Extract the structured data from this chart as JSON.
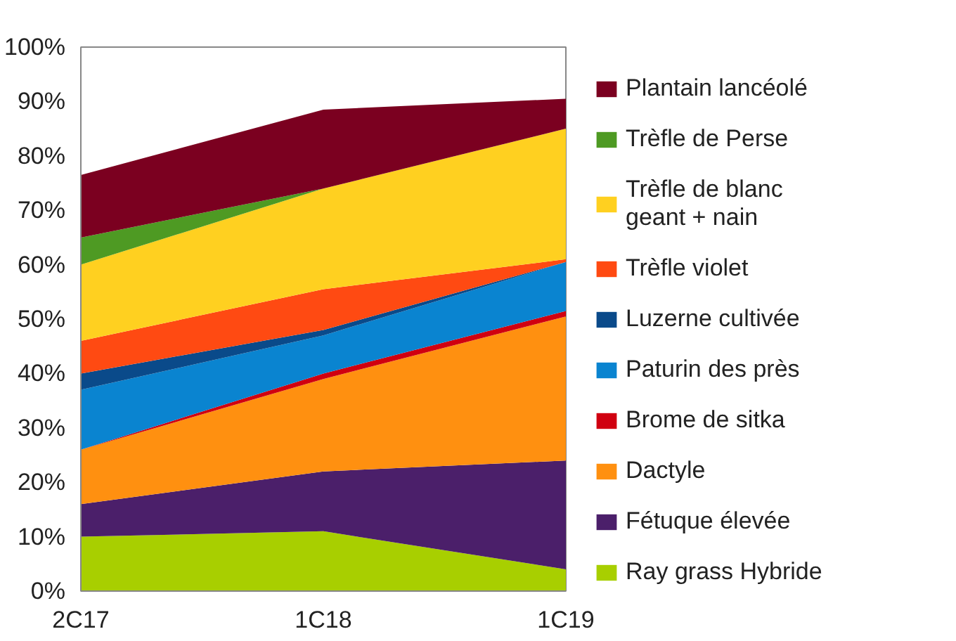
{
  "chart_data": {
    "type": "area",
    "stacked": true,
    "categories": [
      "2C17",
      "1C18",
      "1C19"
    ],
    "ylim": [
      0,
      100
    ],
    "yticks": [
      {
        "value": 0,
        "label": "0%"
      },
      {
        "value": 10,
        "label": "10%"
      },
      {
        "value": 20,
        "label": "20%"
      },
      {
        "value": 30,
        "label": "30%"
      },
      {
        "value": 40,
        "label": "40%"
      },
      {
        "value": 50,
        "label": "50%"
      },
      {
        "value": 60,
        "label": "60%"
      },
      {
        "value": 70,
        "label": "70%"
      },
      {
        "value": 80,
        "label": "80%"
      },
      {
        "value": 90,
        "label": "90%"
      },
      {
        "value": 100,
        "label": "100%"
      }
    ],
    "grid": false,
    "legend": "right",
    "series": [
      {
        "name": "Ray grass Hybride",
        "color": "#a8cf00",
        "values": [
          10,
          11,
          4
        ]
      },
      {
        "name": "Fétuque élevée",
        "color": "#4b1f6a",
        "values": [
          6,
          11,
          20
        ]
      },
      {
        "name": "Dactyle",
        "color": "#ff9010",
        "values": [
          10,
          17,
          26.5
        ]
      },
      {
        "name": "Brome de sitka",
        "color": "#d00010",
        "values": [
          0,
          1,
          1
        ]
      },
      {
        "name": "Paturin des près",
        "color": "#0a84d0",
        "values": [
          11,
          7,
          9
        ]
      },
      {
        "name": "Luzerne cultivée",
        "color": "#0a4a8a",
        "values": [
          3,
          1,
          0
        ]
      },
      {
        "name": "Trèfle violet",
        "color": "#ff4a12",
        "values": [
          6,
          7.5,
          0.5
        ]
      },
      {
        "name": "Trèfle de blanc\ngeant + nain",
        "color": "#ffd020",
        "values": [
          14,
          18.5,
          24
        ]
      },
      {
        "name": "Trèfle de Perse",
        "color": "#4e9a23",
        "values": [
          5,
          0,
          0
        ]
      },
      {
        "name": "Plantain lancéolé",
        "color": "#7b0020",
        "values": [
          11.5,
          14.5,
          5.5
        ]
      }
    ]
  }
}
